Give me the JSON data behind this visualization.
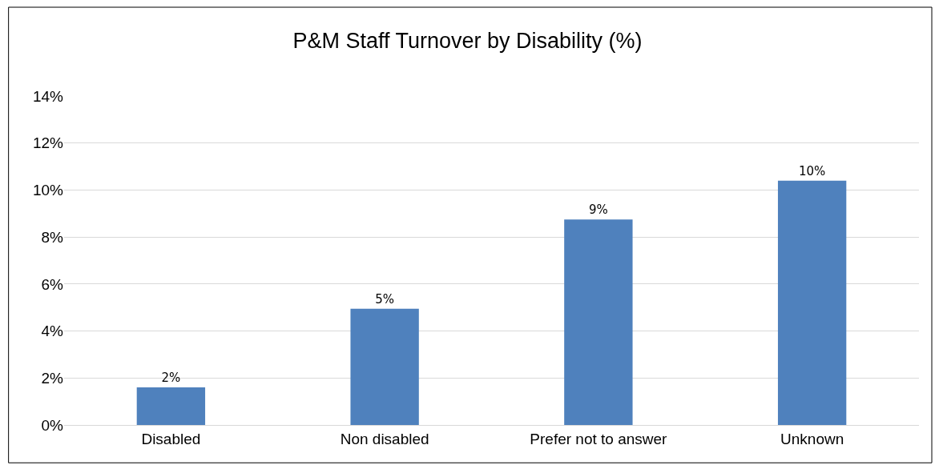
{
  "chart_data": {
    "type": "bar",
    "title": "P&M Staff Turnover by Disability (%)",
    "categories": [
      "Disabled",
      "Non disabled",
      "Prefer not to answer",
      "Unknown"
    ],
    "values": [
      1.6,
      4.95,
      8.75,
      10.4
    ],
    "value_labels": [
      "2%",
      "5%",
      "9%",
      "10%"
    ],
    "color": "#4f81bd",
    "ylim": [
      0,
      14
    ],
    "yticks": [
      {
        "value": 0,
        "label": "0%"
      },
      {
        "value": 2,
        "label": "2%"
      },
      {
        "value": 4,
        "label": "4%"
      },
      {
        "value": 6,
        "label": "6%"
      },
      {
        "value": 8,
        "label": "8%"
      },
      {
        "value": 10,
        "label": "10%"
      },
      {
        "value": 12,
        "label": "12%"
      },
      {
        "value": 14,
        "label": "14%"
      }
    ],
    "grid": "y",
    "legend": false
  }
}
